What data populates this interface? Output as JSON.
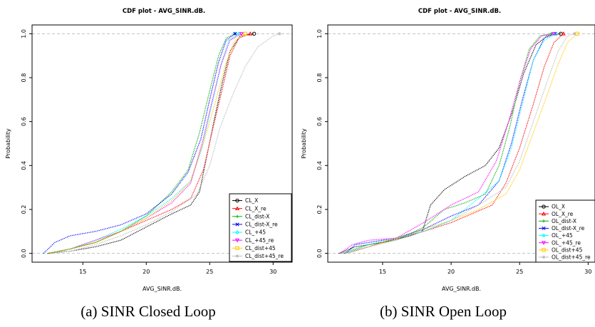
{
  "captions": [
    "(a) SINR Closed Loop",
    "(b) SINR Open Loop"
  ],
  "chart_data": [
    {
      "type": "line",
      "title": "CDF plot -  AVG_SINR.dB.",
      "xlabel": "AVG_SINR.dB.",
      "ylabel": "Probability",
      "xlim": [
        11,
        31.5
      ],
      "ylim": [
        -0.04,
        1.04
      ],
      "x_ticks": [
        15,
        20,
        25,
        30
      ],
      "y_ticks": [
        0.0,
        0.2,
        0.4,
        0.6,
        0.8,
        1.0
      ],
      "y_tick_labels": [
        "0.0",
        "0.2",
        "0.4",
        "0.6",
        "0.8",
        "1.0"
      ],
      "reference_lines_y": [
        0,
        1
      ],
      "legend_position": "bottom-right",
      "series": [
        {
          "name": "CL_X",
          "color": "#000000",
          "marker": "circle",
          "points": [
            [
              12.2,
              0
            ],
            [
              14,
              0.01
            ],
            [
              16,
              0.03
            ],
            [
              18,
              0.06
            ],
            [
              20,
              0.12
            ],
            [
              22,
              0.18
            ],
            [
              23.5,
              0.22
            ],
            [
              24.2,
              0.28
            ],
            [
              24.8,
              0.45
            ],
            [
              25.4,
              0.62
            ],
            [
              26,
              0.78
            ],
            [
              26.6,
              0.92
            ],
            [
              27.4,
              0.99
            ],
            [
              28.5,
              1.0
            ]
          ]
        },
        {
          "name": "CL_X_re",
          "color": "#ff0000",
          "marker": "triangle",
          "points": [
            [
              12.3,
              0
            ],
            [
              14,
              0.02
            ],
            [
              16,
              0.05
            ],
            [
              18,
              0.1
            ],
            [
              20,
              0.15
            ],
            [
              22,
              0.2
            ],
            [
              23.5,
              0.25
            ],
            [
              24.5,
              0.38
            ],
            [
              25.3,
              0.58
            ],
            [
              26,
              0.75
            ],
            [
              26.6,
              0.9
            ],
            [
              27.3,
              0.98
            ],
            [
              28.2,
              1.0
            ]
          ]
        },
        {
          "name": "CL_dist-X",
          "color": "#00b000",
          "marker": "plus",
          "points": [
            [
              12.2,
              0
            ],
            [
              14,
              0.02
            ],
            [
              16,
              0.05
            ],
            [
              18,
              0.1
            ],
            [
              20,
              0.17
            ],
            [
              22,
              0.28
            ],
            [
              23.3,
              0.38
            ],
            [
              24.2,
              0.55
            ],
            [
              25,
              0.74
            ],
            [
              25.7,
              0.9
            ],
            [
              26.3,
              0.98
            ],
            [
              27,
              1.0
            ]
          ]
        },
        {
          "name": "CL_dist-X_re",
          "color": "#0000ff",
          "marker": "x",
          "points": [
            [
              11.9,
              0
            ],
            [
              12.8,
              0.05
            ],
            [
              14,
              0.08
            ],
            [
              16,
              0.1
            ],
            [
              18,
              0.13
            ],
            [
              20,
              0.18
            ],
            [
              22,
              0.27
            ],
            [
              23.3,
              0.37
            ],
            [
              24.3,
              0.52
            ],
            [
              25,
              0.7
            ],
            [
              25.7,
              0.87
            ],
            [
              26.3,
              0.97
            ],
            [
              27,
              1.0
            ]
          ]
        },
        {
          "name": "CL_+45",
          "color": "#00ffff",
          "marker": "diamond",
          "points": [
            [
              12.5,
              0
            ],
            [
              14,
              0.02
            ],
            [
              16,
              0.06
            ],
            [
              18,
              0.11
            ],
            [
              20,
              0.17
            ],
            [
              22,
              0.25
            ],
            [
              23.5,
              0.33
            ],
            [
              24.4,
              0.48
            ],
            [
              25.1,
              0.66
            ],
            [
              25.9,
              0.86
            ],
            [
              26.5,
              0.97
            ],
            [
              27.3,
              1.0
            ]
          ]
        },
        {
          "name": "CL_+45_re",
          "color": "#ff00ff",
          "marker": "triangle-down",
          "points": [
            [
              12.4,
              0
            ],
            [
              14,
              0.02
            ],
            [
              16,
              0.06
            ],
            [
              18,
              0.1
            ],
            [
              20,
              0.16
            ],
            [
              22,
              0.23
            ],
            [
              23.5,
              0.32
            ],
            [
              24.4,
              0.5
            ],
            [
              25.1,
              0.67
            ],
            [
              25.9,
              0.86
            ],
            [
              26.6,
              0.97
            ],
            [
              27.5,
              1.0
            ]
          ]
        },
        {
          "name": "CL_dist+45",
          "color": "#ffcc00",
          "marker": "square",
          "points": [
            [
              12.4,
              0
            ],
            [
              14,
              0.02
            ],
            [
              16,
              0.05
            ],
            [
              18,
              0.1
            ],
            [
              20,
              0.16
            ],
            [
              22,
              0.24
            ],
            [
              23.5,
              0.33
            ],
            [
              24.6,
              0.52
            ],
            [
              25.5,
              0.7
            ],
            [
              26.3,
              0.87
            ],
            [
              27,
              0.97
            ],
            [
              27.8,
              1.0
            ]
          ]
        },
        {
          "name": "CL_dist+45_re",
          "color": "#bbbbbb",
          "marker": "asterisk",
          "points": [
            [
              12.6,
              0
            ],
            [
              14,
              0.01
            ],
            [
              16,
              0.04
            ],
            [
              18,
              0.08
            ],
            [
              20,
              0.13
            ],
            [
              22,
              0.19
            ],
            [
              24,
              0.27
            ],
            [
              25,
              0.4
            ],
            [
              25.8,
              0.57
            ],
            [
              26.8,
              0.72
            ],
            [
              27.8,
              0.85
            ],
            [
              28.8,
              0.94
            ],
            [
              30,
              0.99
            ],
            [
              30.5,
              1.0
            ]
          ]
        }
      ]
    },
    {
      "type": "line",
      "title": "CDF plot -  AVG_SINR.dB.",
      "xlabel": "AVG_SINR.dB.",
      "ylabel": "Probability",
      "xlim": [
        11,
        30.5
      ],
      "ylim": [
        -0.04,
        1.04
      ],
      "x_ticks": [
        15,
        20,
        25,
        30
      ],
      "y_ticks": [
        0.0,
        0.2,
        0.4,
        0.6,
        0.8,
        1.0
      ],
      "y_tick_labels": [
        "0.0",
        "0.2",
        "0.4",
        "0.6",
        "0.8",
        "1.0"
      ],
      "reference_lines_y": [
        0,
        1
      ],
      "legend_position": "bottom-right",
      "series": [
        {
          "name": "OL_X",
          "color": "#000000",
          "marker": "circle",
          "points": [
            [
              11.8,
              0
            ],
            [
              13,
              0.03
            ],
            [
              15,
              0.05
            ],
            [
              17,
              0.08
            ],
            [
              17.9,
              0.1
            ],
            [
              18.5,
              0.22
            ],
            [
              19.5,
              0.29
            ],
            [
              21,
              0.35
            ],
            [
              22.5,
              0.4
            ],
            [
              23.5,
              0.48
            ],
            [
              24.5,
              0.65
            ],
            [
              25.3,
              0.82
            ],
            [
              26.2,
              0.95
            ],
            [
              27,
              0.99
            ],
            [
              28,
              1.0
            ]
          ]
        },
        {
          "name": "OL_X_re",
          "color": "#ff0000",
          "marker": "triangle",
          "points": [
            [
              12.2,
              0
            ],
            [
              14,
              0.03
            ],
            [
              16,
              0.07
            ],
            [
              18,
              0.1
            ],
            [
              20,
              0.14
            ],
            [
              21.5,
              0.18
            ],
            [
              23,
              0.22
            ],
            [
              24,
              0.32
            ],
            [
              25,
              0.48
            ],
            [
              26,
              0.68
            ],
            [
              26.8,
              0.85
            ],
            [
              27.5,
              0.96
            ],
            [
              28.2,
              1.0
            ]
          ]
        },
        {
          "name": "OL_dist-X",
          "color": "#00b000",
          "marker": "plus",
          "points": [
            [
              12,
              0
            ],
            [
              14,
              0.04
            ],
            [
              16,
              0.06
            ],
            [
              18,
              0.12
            ],
            [
              19.5,
              0.2
            ],
            [
              21,
              0.23
            ],
            [
              22.5,
              0.27
            ],
            [
              23.5,
              0.4
            ],
            [
              24.3,
              0.58
            ],
            [
              25,
              0.78
            ],
            [
              25.7,
              0.93
            ],
            [
              26.5,
              0.99
            ],
            [
              27.3,
              1.0
            ]
          ]
        },
        {
          "name": "OL_dist-X_re",
          "color": "#0000ff",
          "marker": "x",
          "points": [
            [
              12.3,
              0
            ],
            [
              13,
              0.04
            ],
            [
              14,
              0.05
            ],
            [
              16,
              0.07
            ],
            [
              18,
              0.11
            ],
            [
              20,
              0.17
            ],
            [
              22,
              0.22
            ],
            [
              23.5,
              0.33
            ],
            [
              24.4,
              0.5
            ],
            [
              25.2,
              0.7
            ],
            [
              26,
              0.88
            ],
            [
              26.8,
              0.98
            ],
            [
              27.6,
              1.0
            ]
          ]
        },
        {
          "name": "OL_+45",
          "color": "#00ffff",
          "marker": "diamond",
          "points": [
            [
              12.3,
              0
            ],
            [
              14,
              0.04
            ],
            [
              16,
              0.07
            ],
            [
              18,
              0.1
            ],
            [
              20,
              0.15
            ],
            [
              22,
              0.25
            ],
            [
              23.5,
              0.33
            ],
            [
              24.4,
              0.48
            ],
            [
              25.2,
              0.68
            ],
            [
              26,
              0.88
            ],
            [
              26.8,
              0.97
            ],
            [
              27.6,
              1.0
            ]
          ]
        },
        {
          "name": "OL_+45_re",
          "color": "#ff00ff",
          "marker": "triangle-down",
          "points": [
            [
              11.9,
              0
            ],
            [
              12.8,
              0.04
            ],
            [
              14,
              0.06
            ],
            [
              16,
              0.07
            ],
            [
              18,
              0.14
            ],
            [
              20,
              0.22
            ],
            [
              22,
              0.28
            ],
            [
              23.3,
              0.42
            ],
            [
              24.2,
              0.6
            ],
            [
              25,
              0.78
            ],
            [
              25.8,
              0.93
            ],
            [
              26.6,
              0.99
            ],
            [
              27.5,
              1.0
            ]
          ]
        },
        {
          "name": "OL_dist+45",
          "color": "#ffcc00",
          "marker": "square",
          "points": [
            [
              12.5,
              0
            ],
            [
              14,
              0.03
            ],
            [
              16,
              0.07
            ],
            [
              18,
              0.11
            ],
            [
              20,
              0.15
            ],
            [
              22,
              0.2
            ],
            [
              24,
              0.27
            ],
            [
              25,
              0.38
            ],
            [
              26,
              0.55
            ],
            [
              27,
              0.72
            ],
            [
              27.8,
              0.86
            ],
            [
              28.5,
              0.96
            ],
            [
              29.2,
              1.0
            ]
          ]
        },
        {
          "name": "OL_dist+45_re",
          "color": "#bbbbbb",
          "marker": "asterisk",
          "points": [
            [
              12.5,
              0
            ],
            [
              14,
              0.03
            ],
            [
              16,
              0.06
            ],
            [
              18,
              0.1
            ],
            [
              20,
              0.15
            ],
            [
              22,
              0.22
            ],
            [
              24,
              0.3
            ],
            [
              25,
              0.42
            ],
            [
              26,
              0.6
            ],
            [
              27,
              0.78
            ],
            [
              27.8,
              0.92
            ],
            [
              28.5,
              0.99
            ],
            [
              29,
              1.0
            ]
          ]
        }
      ]
    }
  ]
}
